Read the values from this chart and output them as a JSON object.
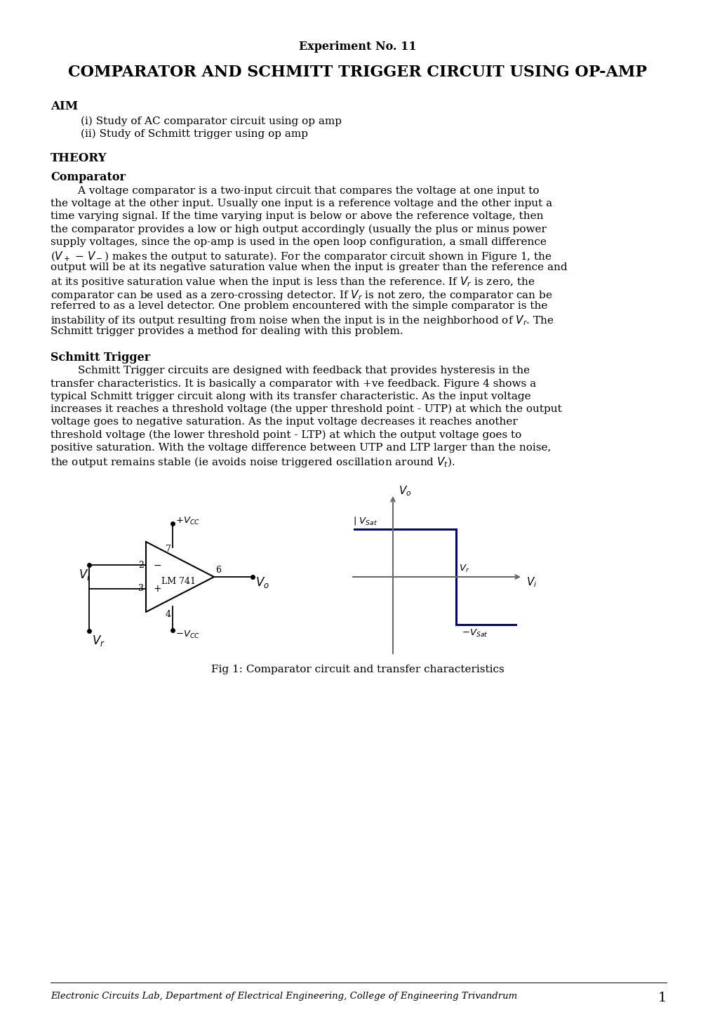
{
  "experiment_no": "Experiment No. 11",
  "title": "COMPARATOR AND SCHMITT TRIGGER CIRCUIT USING OP-AMP",
  "aim_label": "AIM",
  "aim_items": [
    "(i) Study of AC comparator circuit using op amp",
    "(ii) Study of Schmitt trigger using op amp"
  ],
  "theory_label": "THEORY",
  "comparator_label": "Comparator",
  "schmitt_label": "Schmitt Trigger",
  "fig_caption": "Fig 1: Comparator circuit and transfer characteristics",
  "footer": "Electronic Circuits Lab, Department of Electrical Engineering, College of Engineering Trivandrum",
  "page_number": "1",
  "background_color": "#ffffff",
  "text_color": "#000000",
  "graph_line_color": "#00008B",
  "axis_color": "#696969",
  "comparator_lines": [
    "        A voltage comparator is a two-input circuit that compares the voltage at one input to",
    "the voltage at the other input. Usually one input is a reference voltage and the other input a",
    "time varying signal. If the time varying input is below or above the reference voltage, then",
    "the comparator provides a low or high output accordingly (usually the plus or minus power",
    "supply voltages, since the op-amp is used in the open loop configuration, a small difference",
    "($V_+$ $-$ $V_-$) makes the output to saturate). For the comparator circuit shown in Figure 1, the",
    "output will be at its negative saturation value when the input is greater than the reference and",
    "at its positive saturation value when the input is less than the reference. If $V_r$ is zero, the",
    "comparator can be used as a zero-crossing detector. If $V_r$ is not zero, the comparator can be",
    "referred to as a level detector. One problem encountered with the simple comparator is the",
    "instability of its output resulting from noise when the input is in the neighborhood of $V_r$. The",
    "Schmitt trigger provides a method for dealing with this problem."
  ],
  "schmitt_lines": [
    "        Schmitt Trigger circuits are designed with feedback that provides hysteresis in the",
    "transfer characteristics. It is basically a comparator with +ve feedback. Figure 4 shows a",
    "typical Schmitt trigger circuit along with its transfer characteristic. As the input voltage",
    "increases it reaches a threshold voltage (the upper threshold point - UTP) at which the output",
    "voltage goes to negative saturation. As the input voltage decreases it reaches another",
    "threshold voltage (the lower threshold point - LTP) at which the output voltage goes to",
    "positive saturation. With the voltage difference between UTP and LTP larger than the noise,",
    "the output remains stable (ie avoids noise triggered oscillation around $V_t$)."
  ]
}
